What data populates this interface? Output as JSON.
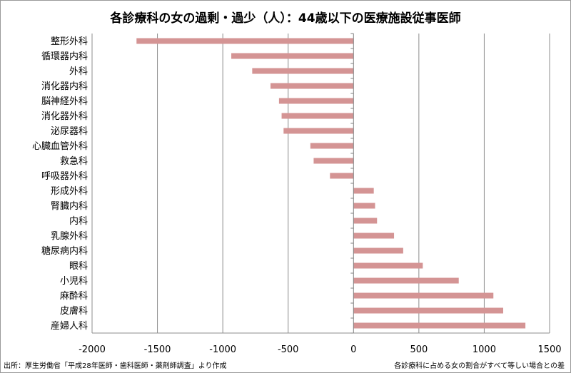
{
  "chart_data": {
    "type": "bar",
    "orientation": "horizontal",
    "title": "各診療科の女の過剰・過少（人）：44歳以下の医療施設従事医師",
    "categories": [
      "整形外科",
      "循環器内科",
      "外科",
      "消化器内科",
      "脳神経外科",
      "消化器外科",
      "泌尿器科",
      "心臓血管外科",
      "救急科",
      "呼吸器外科",
      "形成外科",
      "腎臓内科",
      "内科",
      "乳腺外科",
      "糖尿病内科",
      "眼科",
      "小児科",
      "麻酔科",
      "皮膚科",
      "産婦人科"
    ],
    "values": [
      -1660,
      -935,
      -775,
      -635,
      -570,
      -550,
      -535,
      -330,
      -305,
      -180,
      155,
      165,
      180,
      310,
      380,
      530,
      805,
      1070,
      1145,
      1315
    ],
    "xlim": [
      -2000,
      1500
    ],
    "xticks": [
      -2000,
      -1500,
      -1000,
      -500,
      0,
      500,
      1000,
      1500
    ],
    "xtick_labels": [
      "-2000",
      "-1500",
      "-1000",
      "-500",
      "0",
      "500",
      "1000",
      "1500"
    ],
    "grid": "vertical major gridlines",
    "legend": "none",
    "bar_color": "#d49494"
  },
  "source": "出所：厚生労働省「平成28年医師・歯科医師・薬剤師調査」より作成",
  "footnote": "各診療科に占める女の割合がすべて等しい場合との差"
}
